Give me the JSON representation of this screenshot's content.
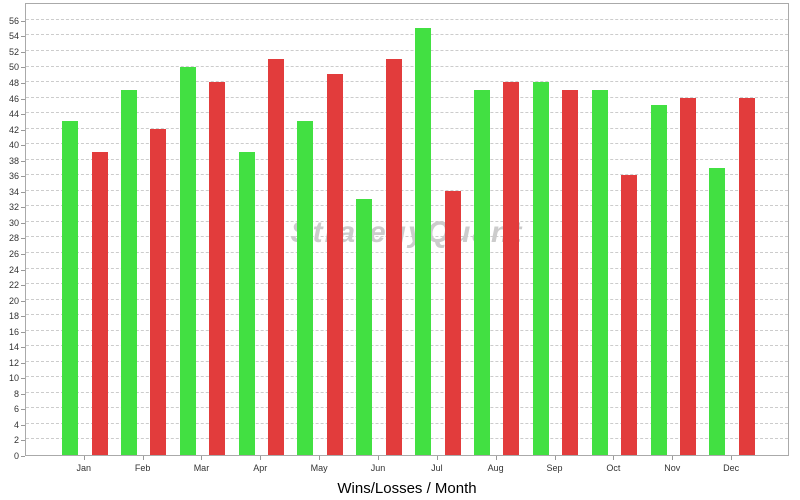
{
  "chart_data": {
    "type": "bar",
    "title": "Wins/Losses / Month",
    "xlabel": "Wins/Losses / Month",
    "ylabel": "",
    "categories": [
      "Jan",
      "Feb",
      "Mar",
      "Apr",
      "May",
      "Jun",
      "Jul",
      "Aug",
      "Sep",
      "Oct",
      "Nov",
      "Dec"
    ],
    "series": [
      {
        "name": "Wins",
        "color": "#42e042",
        "values": [
          43,
          47,
          50,
          39,
          43,
          33,
          55,
          47,
          48,
          47,
          45,
          37
        ]
      },
      {
        "name": "Losses",
        "color": "#e23c3c",
        "values": [
          39,
          42,
          48,
          51,
          49,
          51,
          34,
          48,
          47,
          36,
          46,
          46
        ]
      }
    ],
    "ylim": [
      0,
      58.3
    ],
    "yticks": [
      0,
      2,
      4,
      6,
      8,
      10,
      12,
      14,
      16,
      18,
      20,
      22,
      24,
      26,
      28,
      30,
      32,
      34,
      36,
      38,
      40,
      42,
      44,
      46,
      48,
      50,
      52,
      54,
      56
    ],
    "grid": "horizontal-dashed",
    "legend": "none",
    "watermark": "StrategyQuant"
  },
  "colors": {
    "win_bar": "#42e042",
    "loss_bar": "#e23c3c",
    "gridline": "#cccccc",
    "plot_border": "#aaaaaa",
    "tick_label": "#333333",
    "watermark": "#cccccc",
    "title": "#000000",
    "background": "#ffffff"
  }
}
